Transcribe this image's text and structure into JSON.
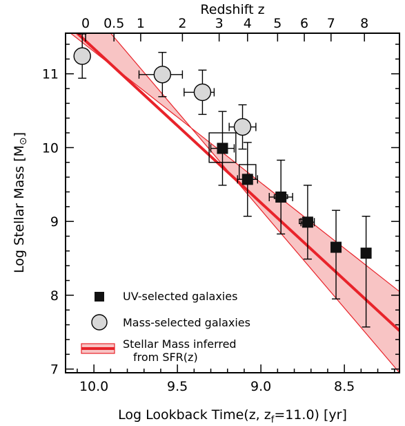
{
  "chart_data": {
    "type": "scatter",
    "xlabel": "Log Lookback Time(z, z",
    "xlabel_sub": "f",
    "xlabel_tail": "=11.0) [yr]",
    "ylabel": "Log Stellar Mass [M",
    "ylabel_sym": "⊙",
    "ylabel_tail": "]",
    "top_axis_title": "Redshift z",
    "xlim": [
      10.17,
      8.17
    ],
    "ylim": [
      6.95,
      11.55
    ],
    "x_reversed": true,
    "x_ticks": [
      10.0,
      9.5,
      9.0,
      8.5
    ],
    "x_tick_labels": [
      "10.0",
      "9.5",
      "9.0",
      "8.5"
    ],
    "y_ticks": [
      7,
      8,
      9,
      10,
      11
    ],
    "y_tick_labels": [
      "7",
      "8",
      "9",
      "10",
      "11"
    ],
    "top_ticks": [
      {
        "label": "0",
        "x": 10.05
      },
      {
        "label": "0.5",
        "x": 9.88
      },
      {
        "label": "1",
        "x": 9.72
      },
      {
        "label": "2",
        "x": 9.47
      },
      {
        "label": "3",
        "x": 9.25
      },
      {
        "label": "4",
        "x": 9.08
      },
      {
        "label": "5",
        "x": 8.9
      },
      {
        "label": "6",
        "x": 8.74
      },
      {
        "label": "7",
        "x": 8.58
      },
      {
        "label": "8",
        "x": 8.38
      }
    ],
    "series": [
      {
        "name": "UV-selected galaxies",
        "marker": "square",
        "color": "#111111",
        "points": [
          {
            "x": 9.23,
            "y": 9.99,
            "xerr": [
              0.07,
              0.07
            ],
            "yerr": [
              0.5,
              0.5
            ],
            "box": [
              9.31,
              9.15,
              10.2,
              9.8
            ]
          },
          {
            "x": 9.08,
            "y": 9.57,
            "xerr": [
              0.06,
              0.06
            ],
            "yerr": [
              0.5,
              0.5
            ],
            "box": [
              9.13,
              9.03,
              9.77,
              9.57
            ]
          },
          {
            "x": 8.88,
            "y": 9.33,
            "xerr": [
              0.07,
              0.07
            ],
            "yerr": [
              0.5,
              0.5
            ],
            "box": [
              8.92,
              8.84,
              9.36,
              9.31
            ]
          },
          {
            "x": 8.72,
            "y": 8.99,
            "xerr": [
              0.04,
              0.04
            ],
            "yerr": [
              0.5,
              0.5
            ],
            "box": [
              8.77,
              8.69,
              9.03,
              8.97
            ]
          },
          {
            "x": 8.55,
            "y": 8.65,
            "xerr": [
              0.0,
              0.0
            ],
            "yerr": [
              0.7,
              0.5
            ],
            "box": null
          },
          {
            "x": 8.37,
            "y": 8.57,
            "xerr": [
              0.0,
              0.0
            ],
            "yerr": [
              1.0,
              0.5
            ],
            "box": null
          }
        ]
      },
      {
        "name": "Mass-selected galaxies",
        "marker": "circle",
        "color": "#d8d8d8",
        "points": [
          {
            "x": 10.07,
            "y": 11.24,
            "xerr": [
              0.0,
              0.0
            ],
            "yerr": [
              0.3,
              0.3
            ]
          },
          {
            "x": 9.59,
            "y": 10.99,
            "xerr": [
              0.14,
              0.12
            ],
            "yerr": [
              0.3,
              0.3
            ]
          },
          {
            "x": 9.35,
            "y": 10.75,
            "xerr": [
              0.11,
              0.07
            ],
            "yerr": [
              0.3,
              0.3
            ]
          },
          {
            "x": 9.11,
            "y": 10.28,
            "xerr": [
              0.08,
              0.08
            ],
            "yerr": [
              0.3,
              0.3
            ]
          }
        ]
      }
    ],
    "model": {
      "name": "Stellar Mass inferred from SFR(z)",
      "line_color": "#e8232a",
      "band_fill": "#f8c4c4",
      "line": [
        [
          10.1,
          11.55
        ],
        [
          8.17,
          7.52
        ]
      ],
      "band_upper": [
        [
          10.14,
          11.55
        ],
        [
          8.17,
          8.05
        ]
      ],
      "band_lower": [
        [
          9.9,
          11.55
        ],
        [
          8.17,
          6.95
        ]
      ]
    },
    "legend": {
      "position": "bottom-left",
      "entries": [
        {
          "marker": "square",
          "label": "UV-selected galaxies"
        },
        {
          "marker": "circle",
          "label": "Mass-selected galaxies"
        },
        {
          "marker": "band",
          "label_line1": "Stellar Mass inferred",
          "label_line2": "from SFR(z)"
        }
      ]
    }
  }
}
